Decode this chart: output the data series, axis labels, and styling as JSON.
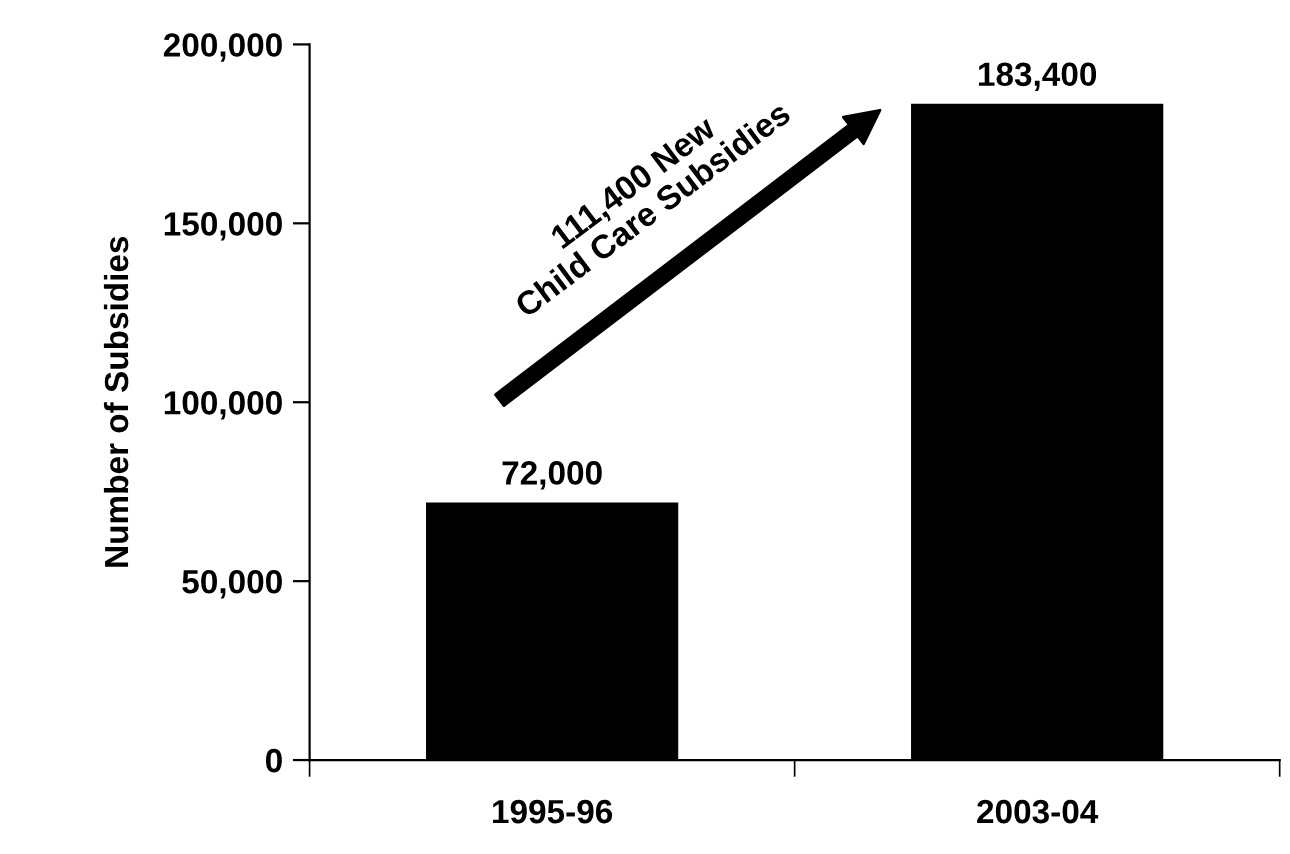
{
  "chart_data": {
    "type": "bar",
    "ylabel": "Number of Subsidies",
    "categories": [
      "1995-96",
      "2003-04"
    ],
    "values": [
      72000,
      183400
    ],
    "color": "#000000",
    "value_labels": [
      "72,000",
      "183,400"
    ],
    "ylim": [
      0,
      200000
    ],
    "yticks": [
      {
        "value": 0,
        "label": "0"
      },
      {
        "value": 50000,
        "label": "50,000"
      },
      {
        "value": 100000,
        "label": "100,000"
      },
      {
        "value": 150000,
        "label": "150,000"
      },
      {
        "value": 200000,
        "label": "200,000"
      }
    ],
    "annotations": [
      "111,400 New\nChild Care Subsidies"
    ],
    "grid": false,
    "legend": false
  }
}
